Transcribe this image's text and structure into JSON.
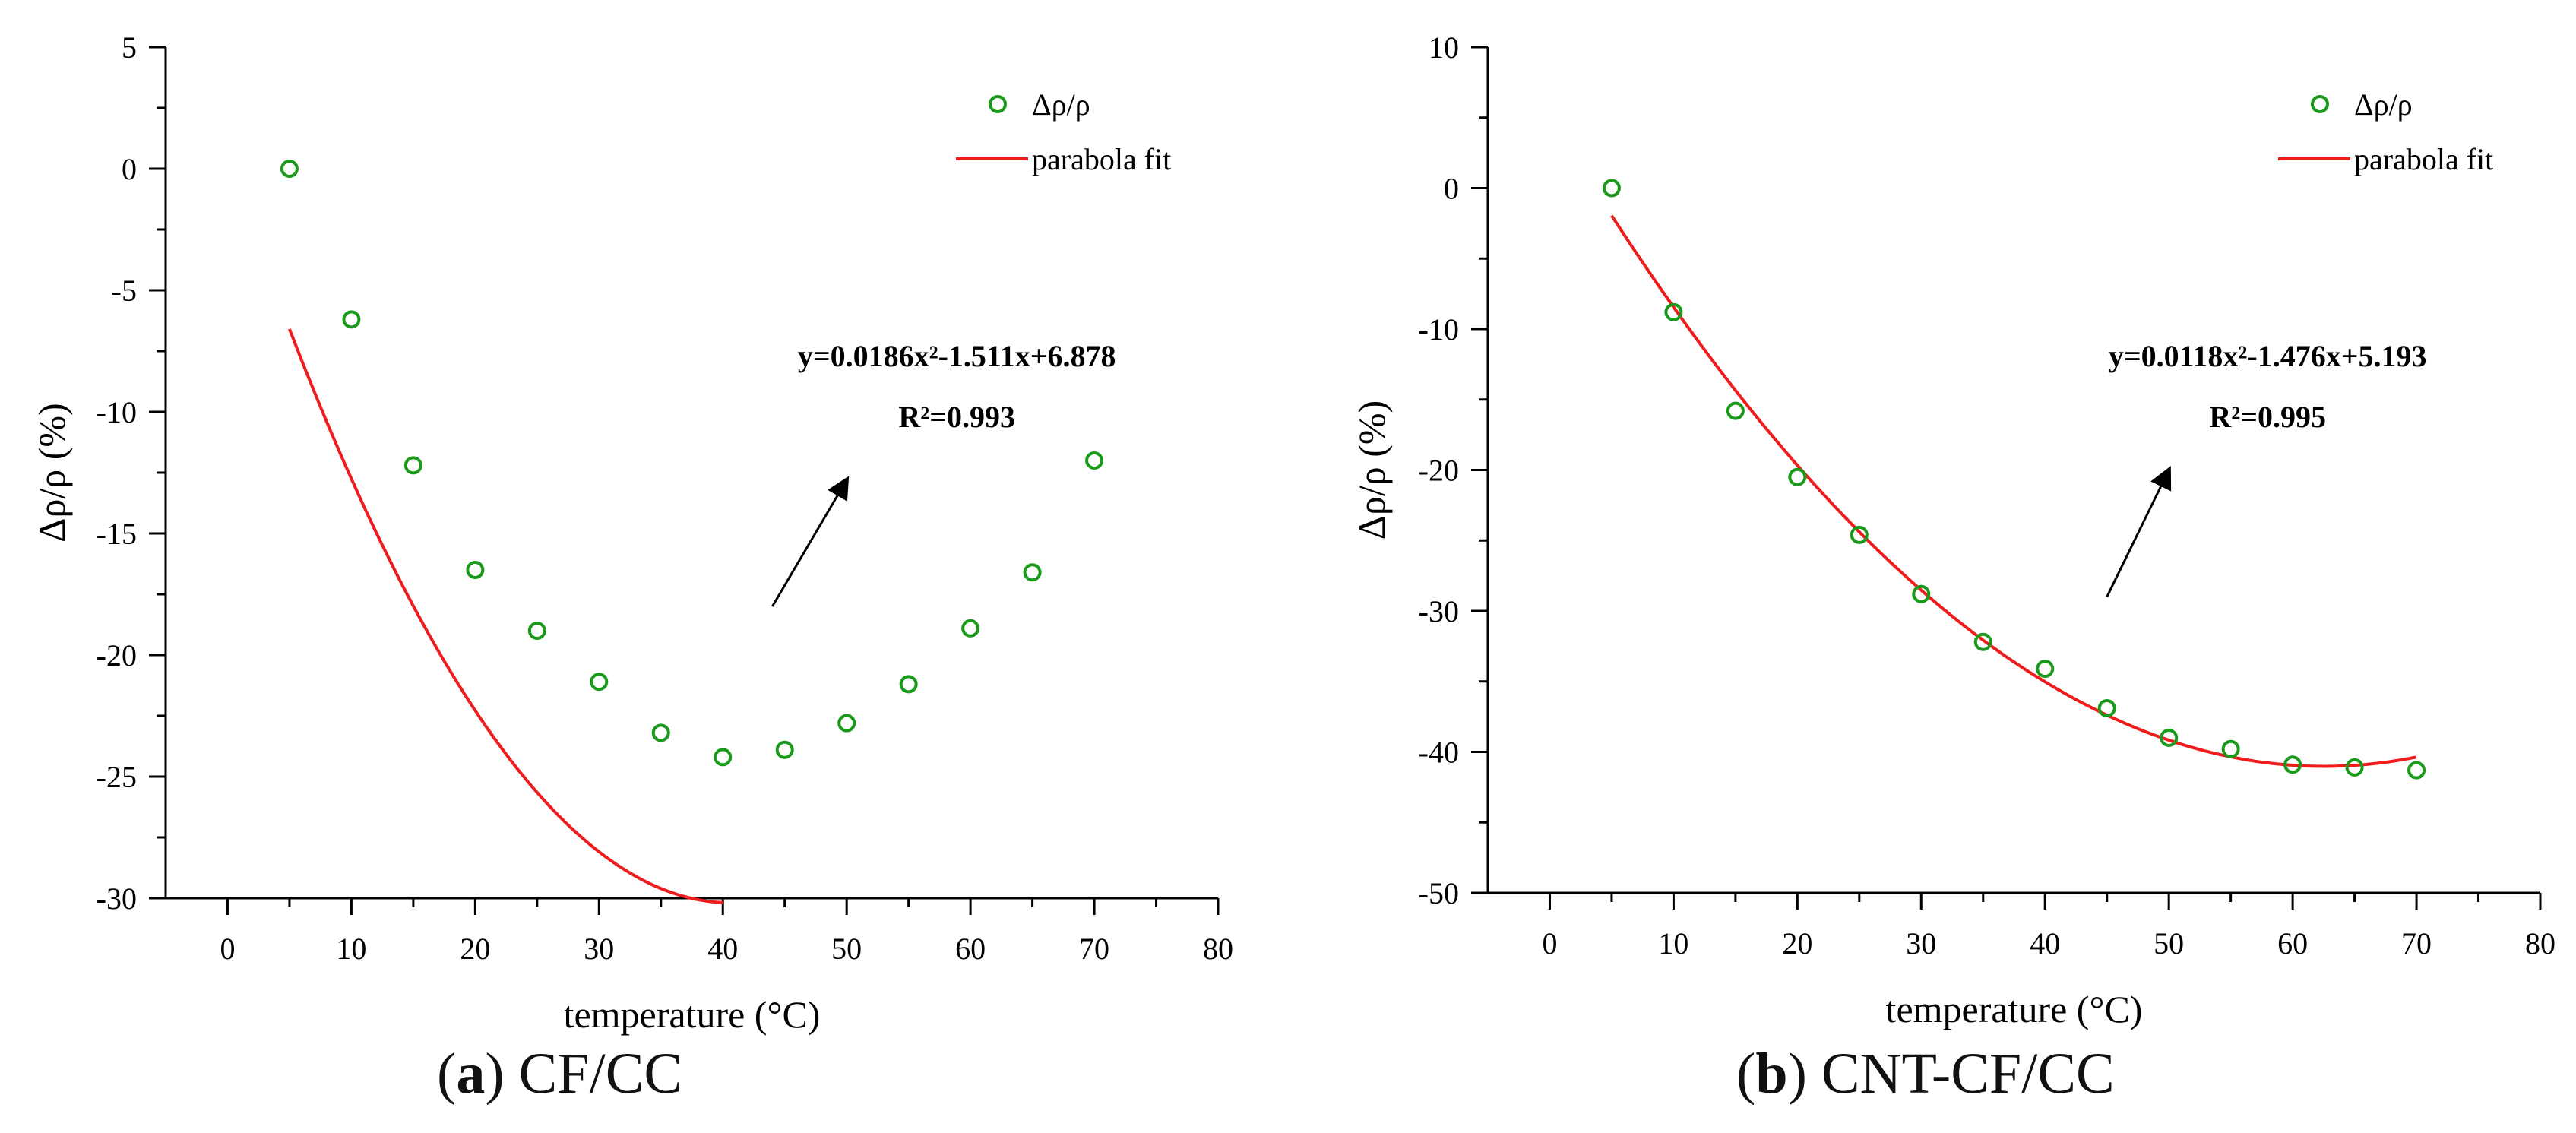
{
  "colors": {
    "marker": "#1a9a1a",
    "fit": "#ee1c1c",
    "axis": "#000000"
  },
  "chart_data": [
    {
      "type": "scatter",
      "panel": "a",
      "caption": {
        "label": "a",
        "name": "CF/CC"
      },
      "xlabel": "temperature (°C)",
      "ylabel": "Δρ/ρ (%)",
      "xlim": [
        -5,
        80
      ],
      "ylim": [
        -30,
        5
      ],
      "xticks": [
        0,
        10,
        20,
        30,
        40,
        50,
        60,
        70,
        80
      ],
      "yticks": [
        -30,
        -25,
        -20,
        -15,
        -10,
        -5,
        0,
        5
      ],
      "legend": {
        "marker_label": "Δρ/ρ",
        "line_label": "parabola fit",
        "position": "top-right"
      },
      "series": [
        {
          "name": "Δρ/ρ",
          "kind": "marker",
          "x": [
            5,
            10,
            15,
            20,
            25,
            30,
            35,
            40,
            45,
            50,
            55,
            60,
            65,
            70
          ],
          "y": [
            0,
            -6.2,
            -12.2,
            -16.5,
            -19,
            -21.1,
            -23.2,
            -24.2,
            -23.9,
            -22.8,
            -21.2,
            -18.9,
            -16.6,
            -12
          ]
        },
        {
          "name": "parabola fit",
          "kind": "line",
          "x_range": [
            5,
            40
          ],
          "equation": {
            "a": 0.0186,
            "b": -1.511,
            "c": 6.878
          },
          "shift": -6.38
        }
      ],
      "annotation": {
        "equation": "y=0.0186x²-1.511x+6.878",
        "r2": "R²=0.993",
        "arrow_from": [
          44,
          -18
        ],
        "arrow_to": [
          50,
          -12.8
        ]
      }
    },
    {
      "type": "scatter",
      "panel": "b",
      "caption": {
        "label": "b",
        "name": "CNT-CF/CC"
      },
      "xlabel": "temperature (°C)",
      "ylabel": "Δρ/ρ (%)",
      "xlim": [
        -5,
        80
      ],
      "ylim": [
        -50,
        10
      ],
      "xticks": [
        0,
        10,
        20,
        30,
        40,
        50,
        60,
        70,
        80
      ],
      "yticks": [
        -50,
        -40,
        -30,
        -20,
        -10,
        0,
        10
      ],
      "legend": {
        "marker_label": "Δρ/ρ",
        "line_label": "parabola fit",
        "position": "top-right"
      },
      "series": [
        {
          "name": "Δρ/ρ",
          "kind": "marker",
          "x": [
            5,
            10,
            15,
            20,
            25,
            30,
            35,
            40,
            45,
            50,
            55,
            60,
            65,
            70
          ],
          "y": [
            0,
            -8.8,
            -15.8,
            -20.5,
            -24.6,
            -28.8,
            -32.2,
            -34.1,
            -36.9,
            -39,
            -39.8,
            -40.9,
            -41.1,
            -41.3
          ]
        },
        {
          "name": "parabola fit",
          "kind": "line",
          "x_range": [
            5,
            70
          ],
          "equation": {
            "a": 0.0118,
            "b": -1.476,
            "c": 5.193
          },
          "shift": -0.06
        }
      ],
      "annotation": {
        "equation": "y=0.0118x²-1.476x+5.193",
        "r2": "R²=0.995",
        "arrow_from": [
          45,
          -29
        ],
        "arrow_to": [
          50,
          -20
        ]
      }
    }
  ]
}
